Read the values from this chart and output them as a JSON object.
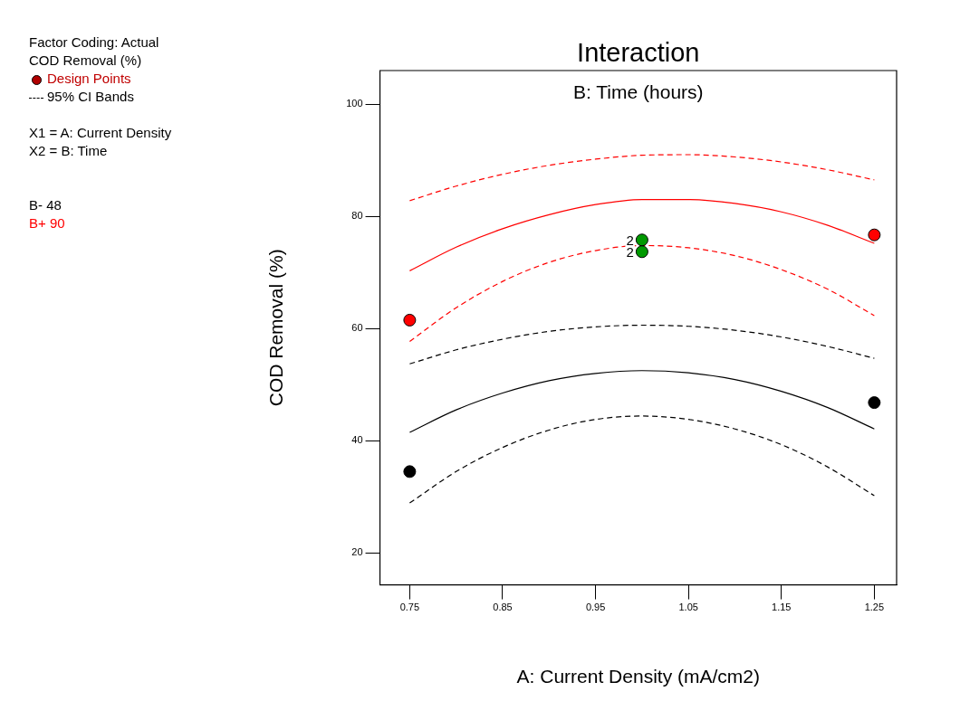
{
  "chart_data": {
    "type": "line",
    "title": "Interaction",
    "subtitle": "B: Time (hours)",
    "xlabel": "A: Current Density (mA/cm2)",
    "ylabel": "COD Removal (%)",
    "xlim": [
      0.718,
      1.274
    ],
    "xticks": [
      0.75,
      0.85,
      0.95,
      1.05,
      1.15,
      1.25
    ],
    "ylim": [
      14.3,
      106
    ],
    "yticks": [
      20,
      40,
      60,
      80,
      100
    ],
    "grid": false,
    "legend": "left",
    "annotations": [
      "Factor Coding: Actual",
      "COD Removal (%)",
      "Design Points",
      "95% CI Bands",
      "X1 = A: Current Density",
      "X2 = B: Time",
      {
        "text": "2",
        "x": 1.0,
        "y": 75
      },
      {
        "text": "2",
        "x": 1.0,
        "y": 74
      }
    ],
    "series": [
      {
        "name": "B- 48",
        "color": "#000000",
        "x": [
          0.75,
          0.8,
          0.85,
          0.9,
          0.95,
          1.0,
          1.05,
          1.1,
          1.15,
          1.2,
          1.25
        ],
        "values": [
          41.5,
          45.5,
          48.5,
          50.7,
          52.0,
          52.5,
          52.1,
          50.9,
          48.8,
          45.9,
          42.1
        ]
      },
      {
        "name": "B+ 90",
        "color": "#ff0000",
        "x": [
          0.75,
          0.8,
          0.85,
          0.9,
          0.95,
          1.0,
          1.05,
          1.1,
          1.15,
          1.2,
          1.25
        ],
        "values": [
          70.3,
          74.5,
          77.8,
          80.3,
          82.1,
          83.0,
          83.0,
          82.3,
          80.8,
          78.4,
          75.2
        ]
      },
      {
        "color": "#000000",
        "line_style": "dashed",
        "x": [
          0.75,
          0.8,
          0.85,
          0.9,
          0.95,
          1.0,
          1.05,
          1.1,
          1.15,
          1.2,
          1.25
        ],
        "values": [
          53.7,
          56.2,
          58.1,
          59.5,
          60.3,
          60.6,
          60.4,
          59.7,
          58.5,
          56.8,
          54.7
        ]
      },
      {
        "color": "#000000",
        "line_style": "dashed",
        "x": [
          0.75,
          0.8,
          0.85,
          0.9,
          0.95,
          1.0,
          1.05,
          1.1,
          1.15,
          1.2,
          1.25
        ],
        "values": [
          28.9,
          34.5,
          38.8,
          41.9,
          43.8,
          44.4,
          43.8,
          42.1,
          39.3,
          35.3,
          30.2
        ]
      },
      {
        "color": "#ff0000",
        "line_style": "dashed",
        "x": [
          0.75,
          0.8,
          0.85,
          0.9,
          0.95,
          1.0,
          1.05,
          1.1,
          1.15,
          1.2,
          1.25
        ],
        "values": [
          82.8,
          85.4,
          87.5,
          89.1,
          90.2,
          90.9,
          91.0,
          90.6,
          89.7,
          88.3,
          86.5
        ]
      },
      {
        "color": "#ff0000",
        "line_style": "dashed",
        "x": [
          0.75,
          0.8,
          0.85,
          0.9,
          0.95,
          1.0,
          1.05,
          1.1,
          1.15,
          1.2,
          1.25
        ],
        "values": [
          57.7,
          63.7,
          68.4,
          71.8,
          73.9,
          74.8,
          74.4,
          73.0,
          70.5,
          67.0,
          62.3
        ]
      },
      {
        "type": "scatter",
        "marker": "circle",
        "color": "#000000",
        "x": [
          0.75,
          1.25
        ],
        "values": [
          34.5,
          46.8
        ]
      },
      {
        "type": "scatter",
        "marker": "circle",
        "color": "#ff0000",
        "x": [
          0.75,
          1.25
        ],
        "values": [
          61.5,
          76.7
        ]
      },
      {
        "type": "scatter",
        "marker": "circle",
        "color": "#009900",
        "x": [
          1.0,
          1.0
        ],
        "values": [
          75.8,
          73.7
        ]
      }
    ]
  }
}
